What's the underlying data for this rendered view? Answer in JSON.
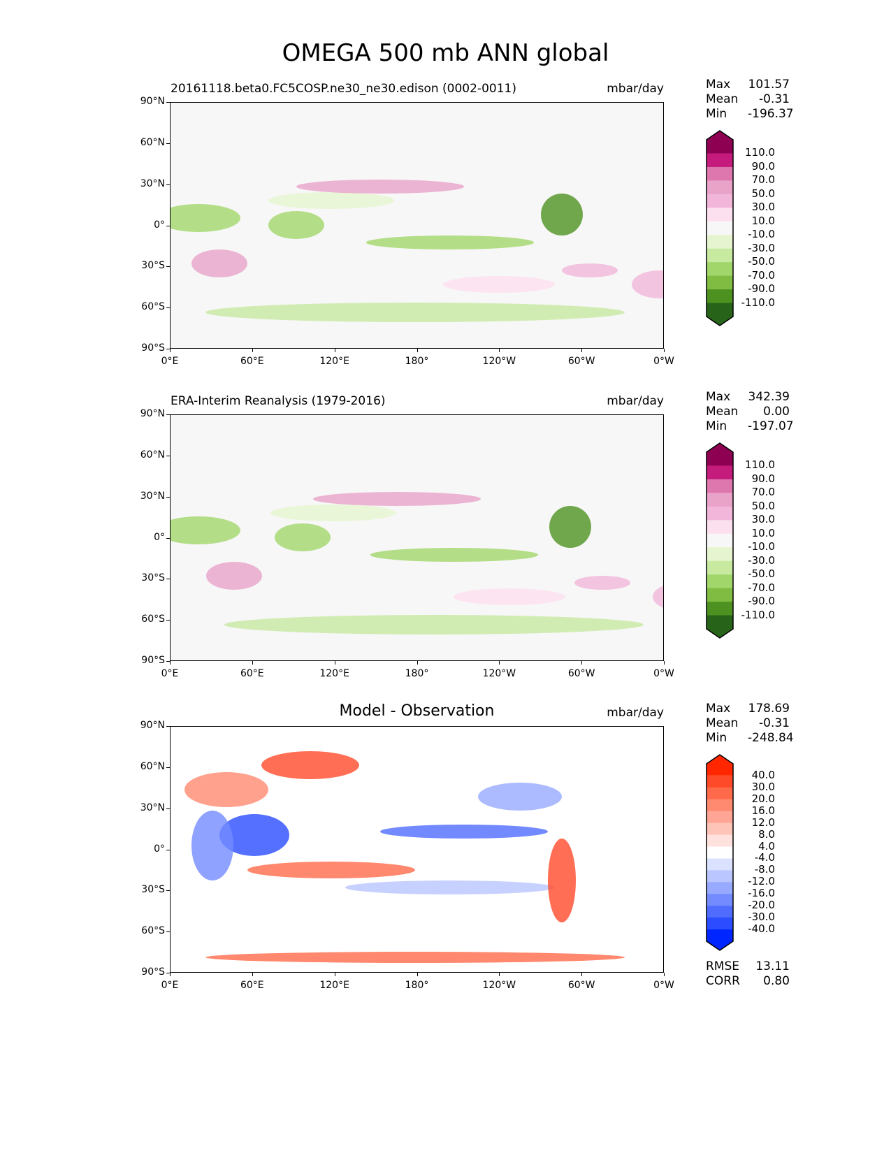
{
  "title": "OMEGA 500 mb ANN global",
  "x_ticks": [
    "0°E",
    "60°E",
    "120°E",
    "180°",
    "120°W",
    "60°W",
    "0°W"
  ],
  "y_ticks": [
    "90°N",
    "60°N",
    "30°N",
    "0°",
    "30°S",
    "60°S",
    "90°S"
  ],
  "chart_data": [
    {
      "type": "heatmap",
      "title": "20161118.beta0.FC5COSP.ne30_ne30.edison (0002-0011)",
      "units": "mbar/day",
      "stats": {
        "Max": "101.57",
        "Mean": "-0.31",
        "Min": "-196.37"
      },
      "colorbar_labels": [
        "110.0",
        "90.0",
        "70.0",
        "50.0",
        "30.0",
        "10.0",
        "-10.0",
        "-30.0",
        "-50.0",
        "-70.0",
        "-90.0",
        "-110.0"
      ],
      "colors": [
        "#8e0152",
        "#c51b7d",
        "#de77ae",
        "#e9a3c9",
        "#f1b6da",
        "#fde0ef",
        "#f7f7f7",
        "#e6f5d0",
        "#c7e9a0",
        "#a1d76a",
        "#7fbc41",
        "#4d9221",
        "#276419"
      ]
    },
    {
      "type": "heatmap",
      "title": "ERA-Interim Reanalysis (1979-2016)",
      "units": "mbar/day",
      "stats": {
        "Max": "342.39",
        "Mean": "0.00",
        "Min": "-197.07"
      },
      "colorbar_labels": [
        "110.0",
        "90.0",
        "70.0",
        "50.0",
        "30.0",
        "10.0",
        "-10.0",
        "-30.0",
        "-50.0",
        "-70.0",
        "-90.0",
        "-110.0"
      ],
      "colors": [
        "#8e0152",
        "#c51b7d",
        "#de77ae",
        "#e9a3c9",
        "#f1b6da",
        "#fde0ef",
        "#f7f7f7",
        "#e6f5d0",
        "#c7e9a0",
        "#a1d76a",
        "#7fbc41",
        "#4d9221",
        "#276419"
      ]
    },
    {
      "type": "heatmap",
      "title": "Model - Observation",
      "units": "mbar/day",
      "stats": {
        "Max": "178.69",
        "Mean": "-0.31",
        "Min": "-248.84"
      },
      "extra": {
        "RMSE": "13.11",
        "CORR": "0.80"
      },
      "colorbar_labels": [
        "40.0",
        "30.0",
        "20.0",
        "16.0",
        "12.0",
        "8.0",
        "4.0",
        "-4.0",
        "-8.0",
        "-12.0",
        "-16.0",
        "-20.0",
        "-30.0",
        "-40.0"
      ],
      "colors": [
        "#ff2600",
        "#ff4a2a",
        "#ff6a4a",
        "#ff8a70",
        "#ffa595",
        "#ffc4b8",
        "#ffe2dd",
        "#ffffff",
        "#dbe2ff",
        "#b9c6ff",
        "#97aaff",
        "#738bff",
        "#4f6cff",
        "#2b4cff",
        "#0026ff"
      ]
    }
  ]
}
